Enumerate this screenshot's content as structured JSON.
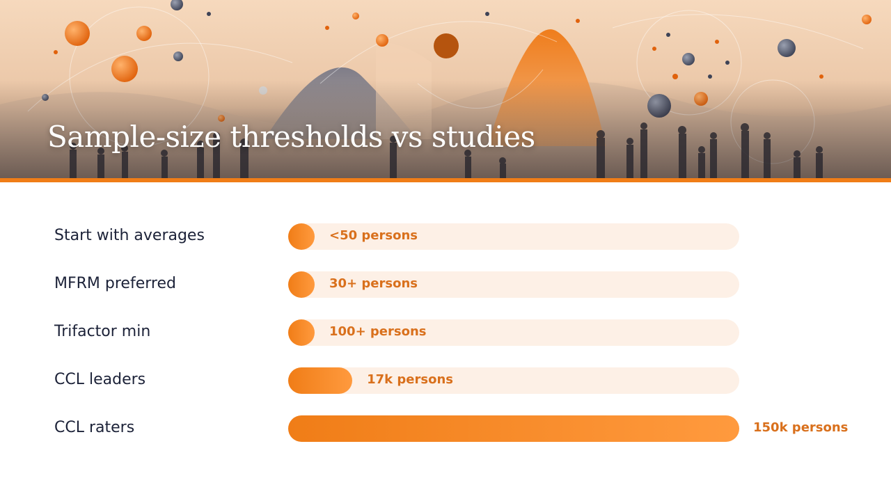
{
  "title": "Sample-size thresholds vs studies",
  "colors": {
    "accent": "#f07d17",
    "accent_light": "#ff9a3e",
    "track": "#fdf0e6",
    "value_text": "#d9701c",
    "label_text": "#1c2238"
  },
  "chart_data": {
    "type": "bar",
    "orientation": "horizontal",
    "scale": "log",
    "categories": [
      "Start with averages",
      "MFRM preferred",
      "Trifactor min",
      "CCL leaders",
      "CCL raters"
    ],
    "values": [
      50,
      30,
      100,
      17000,
      150000
    ],
    "value_labels": [
      "<50 persons",
      "30+ persons",
      "100+ persons",
      "17k persons",
      "150k persons"
    ],
    "xlim": [
      1,
      150000
    ],
    "title": "Sample-size thresholds vs studies",
    "xlabel": "",
    "ylabel": "",
    "grid": false,
    "legend": "none"
  }
}
